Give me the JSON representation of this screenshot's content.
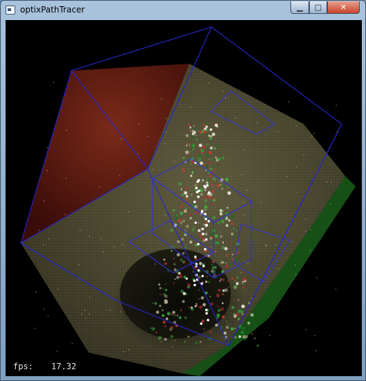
{
  "window": {
    "title": "optixPathTracer",
    "controls": {
      "minimize_glyph": "▁",
      "maximize_glyph": "□",
      "close_glyph": "✕"
    },
    "app_icon": "window-app-icon"
  },
  "overlay": {
    "fps_label": "fps:",
    "fps_value": "17.32"
  },
  "colors": {
    "red_wall": "#5a1710",
    "floor": "#4a4630",
    "green_wall": "#1c6a1c",
    "wireframe": "#2a2ad0",
    "background": "#000000"
  }
}
